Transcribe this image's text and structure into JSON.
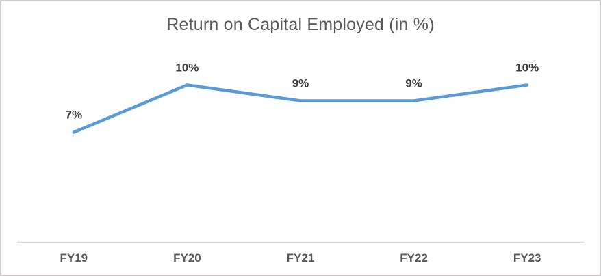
{
  "chart_data": {
    "type": "line",
    "title": "Return on Capital Employed (in %)",
    "categories": [
      "FY19",
      "FY20",
      "FY21",
      "FY22",
      "FY23"
    ],
    "values": [
      7,
      10,
      9,
      9,
      10
    ],
    "data_labels": [
      "7%",
      "10%",
      "9%",
      "9%",
      "10%"
    ],
    "xlabel": "",
    "ylabel": "",
    "ylim": [
      0,
      12
    ],
    "grid": false,
    "legend": false,
    "data_label_position": "above",
    "colors": {
      "line": "#5b9bd5",
      "data_label": "#3f3f3f",
      "axis_tick_label": "#595959",
      "axis_line": "#d9d9d9",
      "title": "#595959",
      "canvas_border": "#cfcdcd",
      "background": "#ffffff"
    }
  }
}
